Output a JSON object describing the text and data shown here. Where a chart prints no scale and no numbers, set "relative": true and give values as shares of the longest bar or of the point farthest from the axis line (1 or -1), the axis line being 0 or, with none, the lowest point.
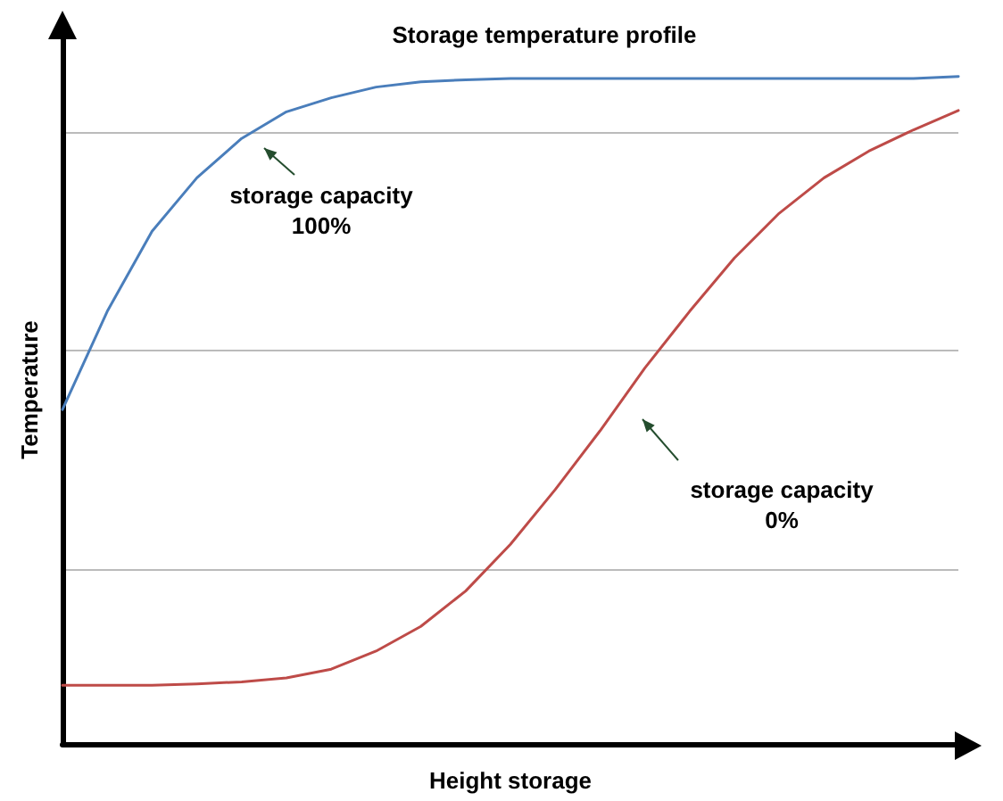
{
  "chart_data": {
    "type": "line",
    "title": "Storage temperature profile",
    "xlabel": "Height storage",
    "ylabel": "Temperature",
    "relative": true,
    "grid": "y",
    "marker": "none",
    "line_style": "solid",
    "categories": [
      null,
      null,
      null,
      null,
      null,
      null,
      null,
      null,
      null,
      null,
      null,
      null,
      null,
      null,
      null,
      null,
      null,
      null,
      null,
      null,
      null
    ],
    "series": [
      {
        "color": "#4a7ebb",
        "values": [
          0.501,
          0.648,
          0.768,
          0.848,
          0.907,
          0.947,
          0.968,
          0.984,
          0.992,
          0.995,
          0.997,
          0.997,
          0.997,
          0.997,
          0.997,
          0.997,
          0.997,
          0.997,
          0.997,
          0.997,
          1
        ]
      },
      {
        "color": "#be4b48",
        "values": [
          0.088,
          0.088,
          0.088,
          0.09,
          0.093,
          0.099,
          0.112,
          0.139,
          0.176,
          0.229,
          0.299,
          0.381,
          0.469,
          0.563,
          0.648,
          0.728,
          0.795,
          0.848,
          0.888,
          0.92,
          0.949
        ]
      }
    ],
    "annotations": [
      "storage capacity\n100%",
      "storage capacity\n0%"
    ]
  }
}
